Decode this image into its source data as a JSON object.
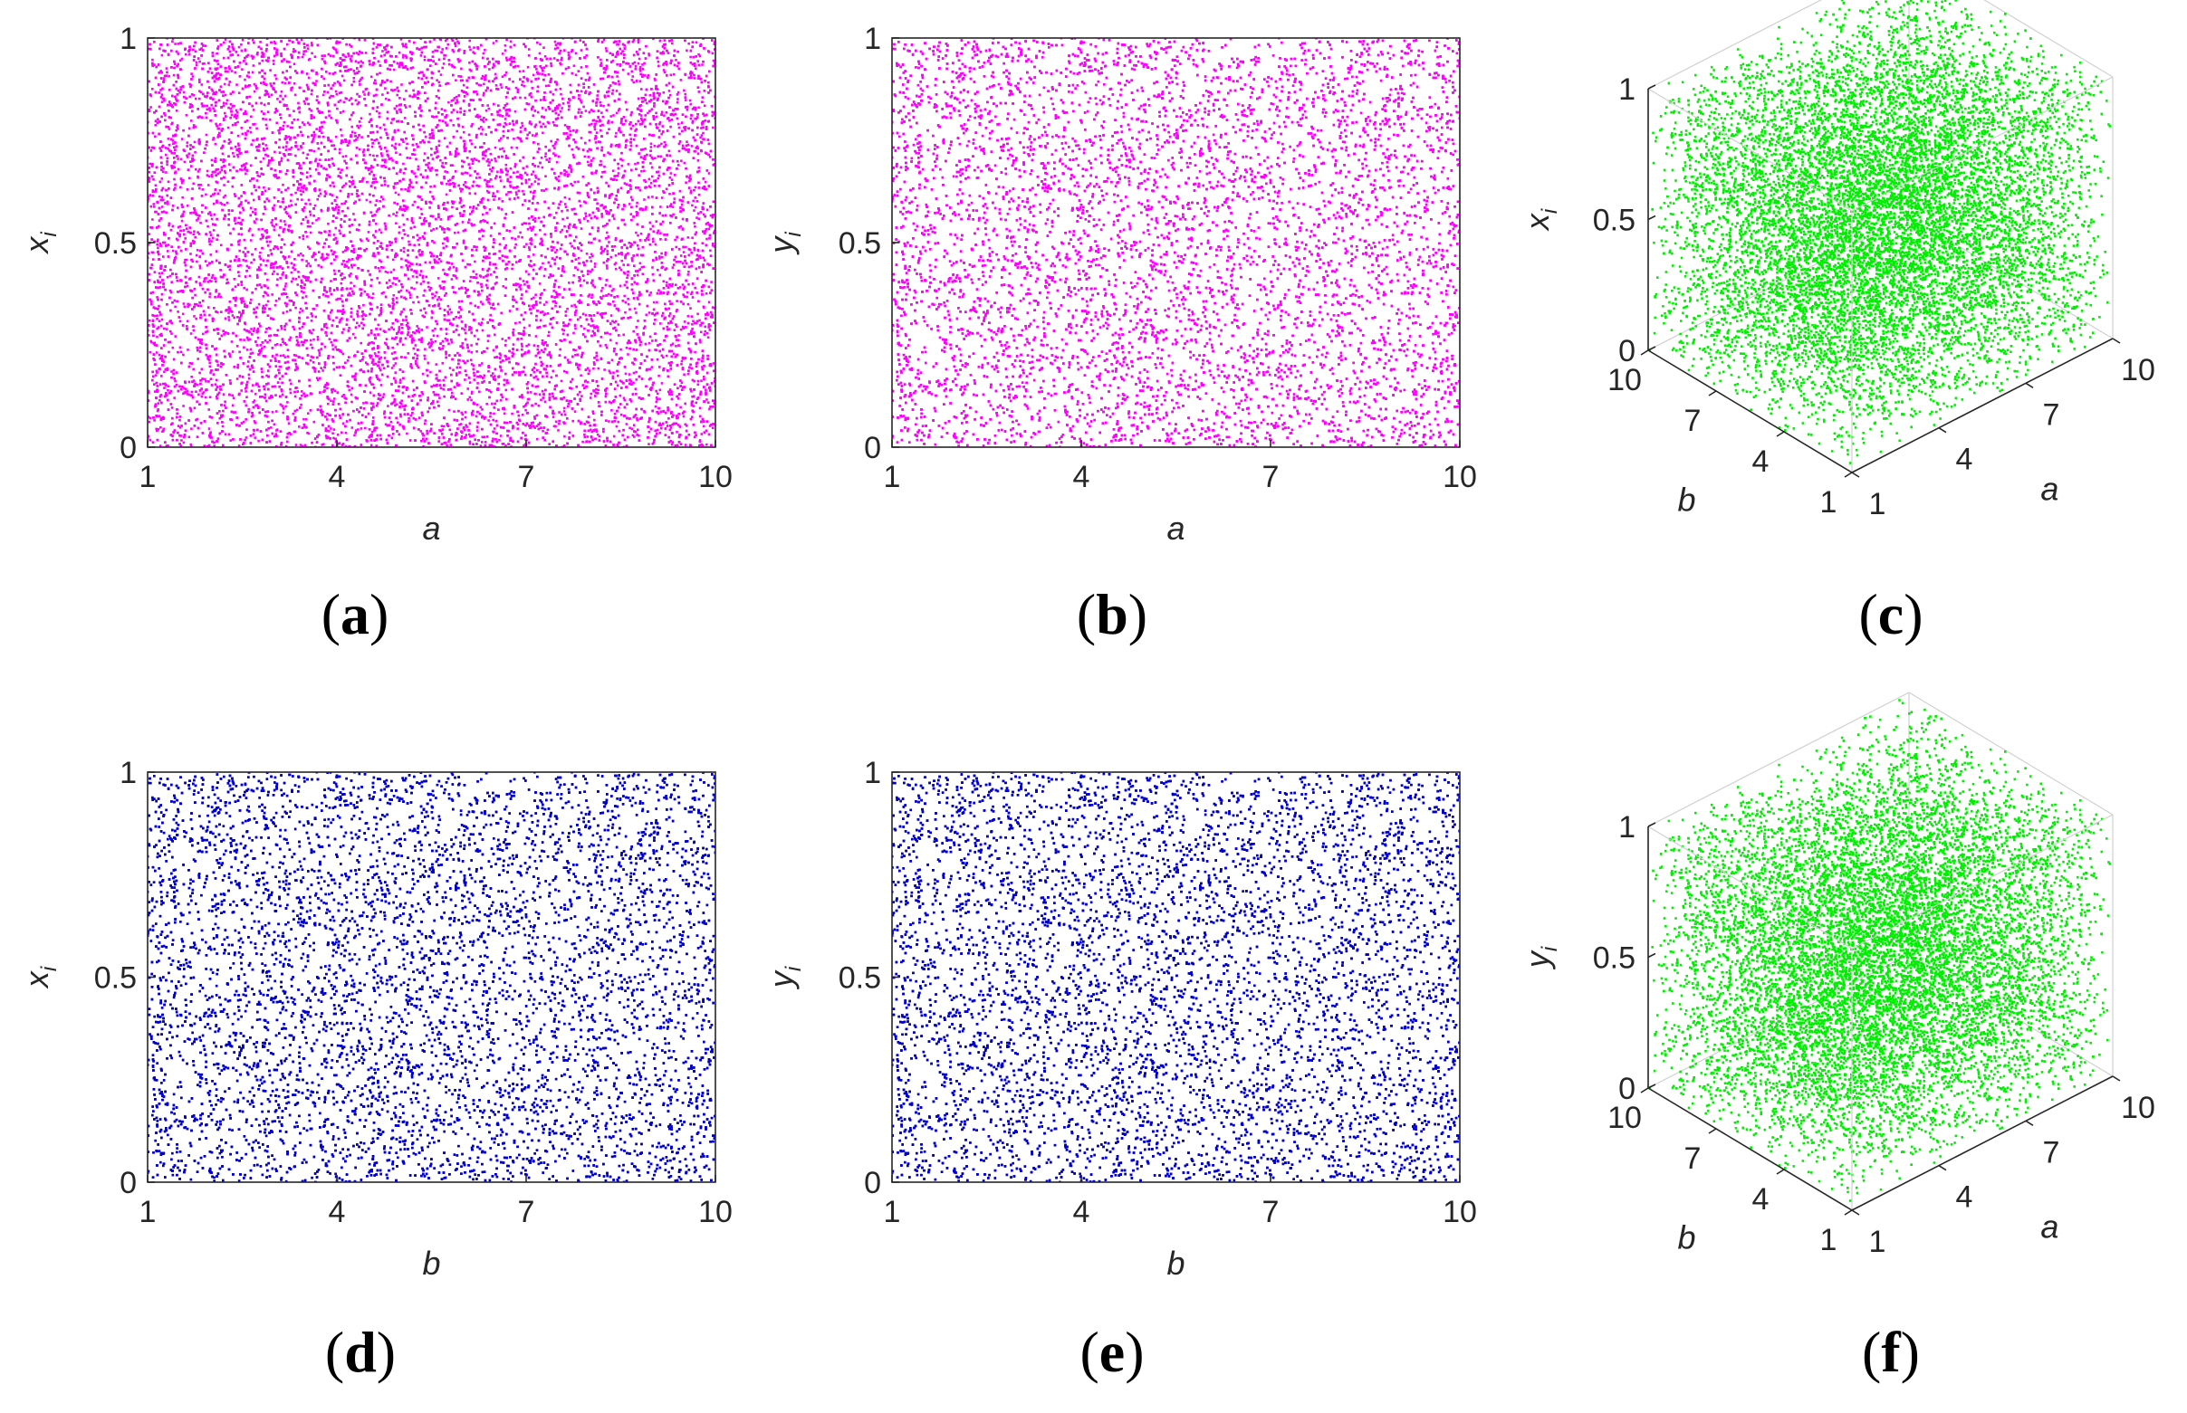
{
  "figure": {
    "colors": {
      "magenta": "#ff00ff",
      "blue": "#0000cc",
      "green": "#00ee00"
    }
  },
  "chart_data": [
    {
      "id": "a",
      "type": "scatter",
      "caption_letter": "a",
      "xlabel": "a",
      "ylabel_base": "x",
      "ylabel_sub": "i",
      "xlim": [
        1,
        10
      ],
      "ylim": [
        0,
        1
      ],
      "xticks": [
        1,
        4,
        7,
        10
      ],
      "xtick_labels": [
        "1",
        "4",
        "7",
        "10"
      ],
      "yticks": [
        0,
        0.5,
        1
      ],
      "ytick_labels": [
        "0",
        "0.5",
        "1"
      ],
      "color": "#ff00ff",
      "series": [
        {
          "description": "dense uniformly distributed points",
          "x_range": [
            1,
            10
          ],
          "y_range": [
            0,
            1
          ]
        }
      ]
    },
    {
      "id": "b",
      "type": "scatter",
      "caption_letter": "b",
      "xlabel": "a",
      "ylabel_base": "y",
      "ylabel_sub": "i",
      "xlim": [
        1,
        10
      ],
      "ylim": [
        0,
        1
      ],
      "xticks": [
        1,
        4,
        7,
        10
      ],
      "xtick_labels": [
        "1",
        "4",
        "7",
        "10"
      ],
      "yticks": [
        0,
        0.5,
        1
      ],
      "ytick_labels": [
        "0",
        "0.5",
        "1"
      ],
      "color": "#ff00ff",
      "series": [
        {
          "description": "dense uniformly distributed points",
          "x_range": [
            1,
            10
          ],
          "y_range": [
            0,
            1
          ]
        }
      ]
    },
    {
      "id": "c",
      "type": "scatter3d",
      "caption_letter": "c",
      "xlabel": "a",
      "ylabel": "b",
      "zlabel_base": "x",
      "zlabel_sub": "i",
      "xlim": [
        1,
        10
      ],
      "ylim": [
        1,
        10
      ],
      "zlim": [
        0,
        1
      ],
      "xtick_labels": [
        "1",
        "4",
        "7",
        "10"
      ],
      "ytick_labels": [
        "1",
        "4",
        "7",
        "10"
      ],
      "ztick_labels": [
        "0",
        "0.5",
        "1"
      ],
      "color": "#00ee00",
      "series": [
        {
          "description": "dense uniformly distributed 3D point cloud",
          "x_range": [
            1,
            10
          ],
          "y_range": [
            1,
            10
          ],
          "z_range": [
            0,
            1
          ]
        }
      ]
    },
    {
      "id": "d",
      "type": "scatter",
      "caption_letter": "d",
      "xlabel": "b",
      "ylabel_base": "x",
      "ylabel_sub": "i",
      "xlim": [
        1,
        10
      ],
      "ylim": [
        0,
        1
      ],
      "xticks": [
        1,
        4,
        7,
        10
      ],
      "xtick_labels": [
        "1",
        "4",
        "7",
        "10"
      ],
      "yticks": [
        0,
        0.5,
        1
      ],
      "ytick_labels": [
        "0",
        "0.5",
        "1"
      ],
      "color": "#0000cc",
      "series": [
        {
          "description": "dense uniformly distributed points",
          "x_range": [
            1,
            10
          ],
          "y_range": [
            0,
            1
          ]
        }
      ]
    },
    {
      "id": "e",
      "type": "scatter",
      "caption_letter": "e",
      "xlabel": "b",
      "ylabel_base": "y",
      "ylabel_sub": "i",
      "xlim": [
        1,
        10
      ],
      "ylim": [
        0,
        1
      ],
      "xticks": [
        1,
        4,
        7,
        10
      ],
      "xtick_labels": [
        "1",
        "4",
        "7",
        "10"
      ],
      "yticks": [
        0,
        0.5,
        1
      ],
      "ytick_labels": [
        "0",
        "0.5",
        "1"
      ],
      "color": "#0000cc",
      "series": [
        {
          "description": "dense uniformly distributed points",
          "x_range": [
            1,
            10
          ],
          "y_range": [
            0,
            1
          ]
        }
      ]
    },
    {
      "id": "f",
      "type": "scatter3d",
      "caption_letter": "f",
      "xlabel": "a",
      "ylabel": "b",
      "zlabel_base": "y",
      "zlabel_sub": "i",
      "xlim": [
        1,
        10
      ],
      "ylim": [
        1,
        10
      ],
      "zlim": [
        0,
        1
      ],
      "xtick_labels": [
        "1",
        "4",
        "7",
        "10"
      ],
      "ytick_labels": [
        "1",
        "4",
        "7",
        "10"
      ],
      "ztick_labels": [
        "0",
        "0.5",
        "1"
      ],
      "color": "#00ee00",
      "series": [
        {
          "description": "dense uniformly distributed 3D point cloud",
          "x_range": [
            1,
            10
          ],
          "y_range": [
            1,
            10
          ],
          "z_range": [
            0,
            1
          ]
        }
      ]
    }
  ]
}
